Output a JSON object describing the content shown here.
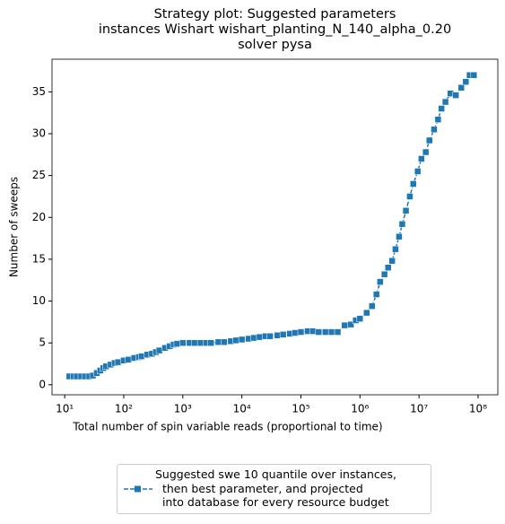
{
  "chart_data": {
    "type": "line",
    "title": "Strategy plot: Suggested parameters\n instances Wishart wishart_planting_N_140_alpha_0.20\nsolver pysa",
    "xlabel": "Total number of spin variable reads (proportional to time)",
    "ylabel": "Number of sweeps",
    "xscale": "log",
    "xlim": [
      6.1,
      216000000
    ],
    "ylim": [
      -1.2,
      38.9
    ],
    "xticks": [
      {
        "value": 10,
        "label": "10¹"
      },
      {
        "value": 100,
        "label": "10²"
      },
      {
        "value": 1000,
        "label": "10³"
      },
      {
        "value": 10000,
        "label": "10⁴"
      },
      {
        "value": 100000,
        "label": "10⁵"
      },
      {
        "value": 1000000,
        "label": "10⁶"
      },
      {
        "value": 10000000,
        "label": "10⁷"
      },
      {
        "value": 100000000,
        "label": "10⁸"
      }
    ],
    "yticks": [
      0,
      5,
      10,
      15,
      20,
      25,
      30,
      35
    ],
    "x": [
      12,
      14,
      16,
      19,
      22,
      26,
      30,
      35,
      40,
      45,
      50,
      60,
      70,
      80,
      100,
      120,
      150,
      180,
      200,
      250,
      300,
      350,
      400,
      500,
      600,
      700,
      800,
      1000,
      1300,
      1600,
      2000,
      2500,
      3000,
      4000,
      5000,
      6500,
      8000,
      10000,
      13000,
      16000,
      20000,
      25000,
      30000,
      40000,
      50000,
      65000,
      80000,
      100000,
      130000,
      160000,
      200000,
      260000,
      330000,
      420000,
      550000,
      700000,
      850000,
      1000000,
      1300000,
      1600000,
      1900000,
      2200000,
      2600000,
      3000000,
      3500000,
      4000000,
      4600000,
      5200000,
      6000000,
      7000000,
      8000000,
      9500000,
      11000000,
      13000000,
      15000000,
      18000000,
      21000000,
      24000000,
      28000000,
      34000000,
      42000000,
      52000000,
      62000000,
      72000000,
      85000000
    ],
    "series": [
      {
        "name": "Suggested swe 10 quantile over instances,\n  then best parameter, and projected\n  into database for every resource budget",
        "color": "#1f77b4",
        "values": [
          1.0,
          1.0,
          1.0,
          1.0,
          1.0,
          1.0,
          1.1,
          1.4,
          1.7,
          2.0,
          2.2,
          2.4,
          2.6,
          2.7,
          2.9,
          3.0,
          3.2,
          3.3,
          3.4,
          3.6,
          3.7,
          3.9,
          4.1,
          4.4,
          4.6,
          4.8,
          4.9,
          5.0,
          5.0,
          5.0,
          5.0,
          5.0,
          5.0,
          5.1,
          5.1,
          5.2,
          5.3,
          5.4,
          5.5,
          5.6,
          5.7,
          5.8,
          5.8,
          5.9,
          6.0,
          6.1,
          6.2,
          6.3,
          6.4,
          6.4,
          6.3,
          6.3,
          6.3,
          6.3,
          7.1,
          7.2,
          7.7,
          7.9,
          8.6,
          9.4,
          10.8,
          12.3,
          13.2,
          14.0,
          14.8,
          16.2,
          17.7,
          19.2,
          20.8,
          22.5,
          24.0,
          25.5,
          27.0,
          27.8,
          29.2,
          30.5,
          31.7,
          33.0,
          33.8,
          34.8,
          34.6,
          35.5,
          36.2,
          37.0,
          37.0
        ]
      }
    ],
    "grid": false
  }
}
